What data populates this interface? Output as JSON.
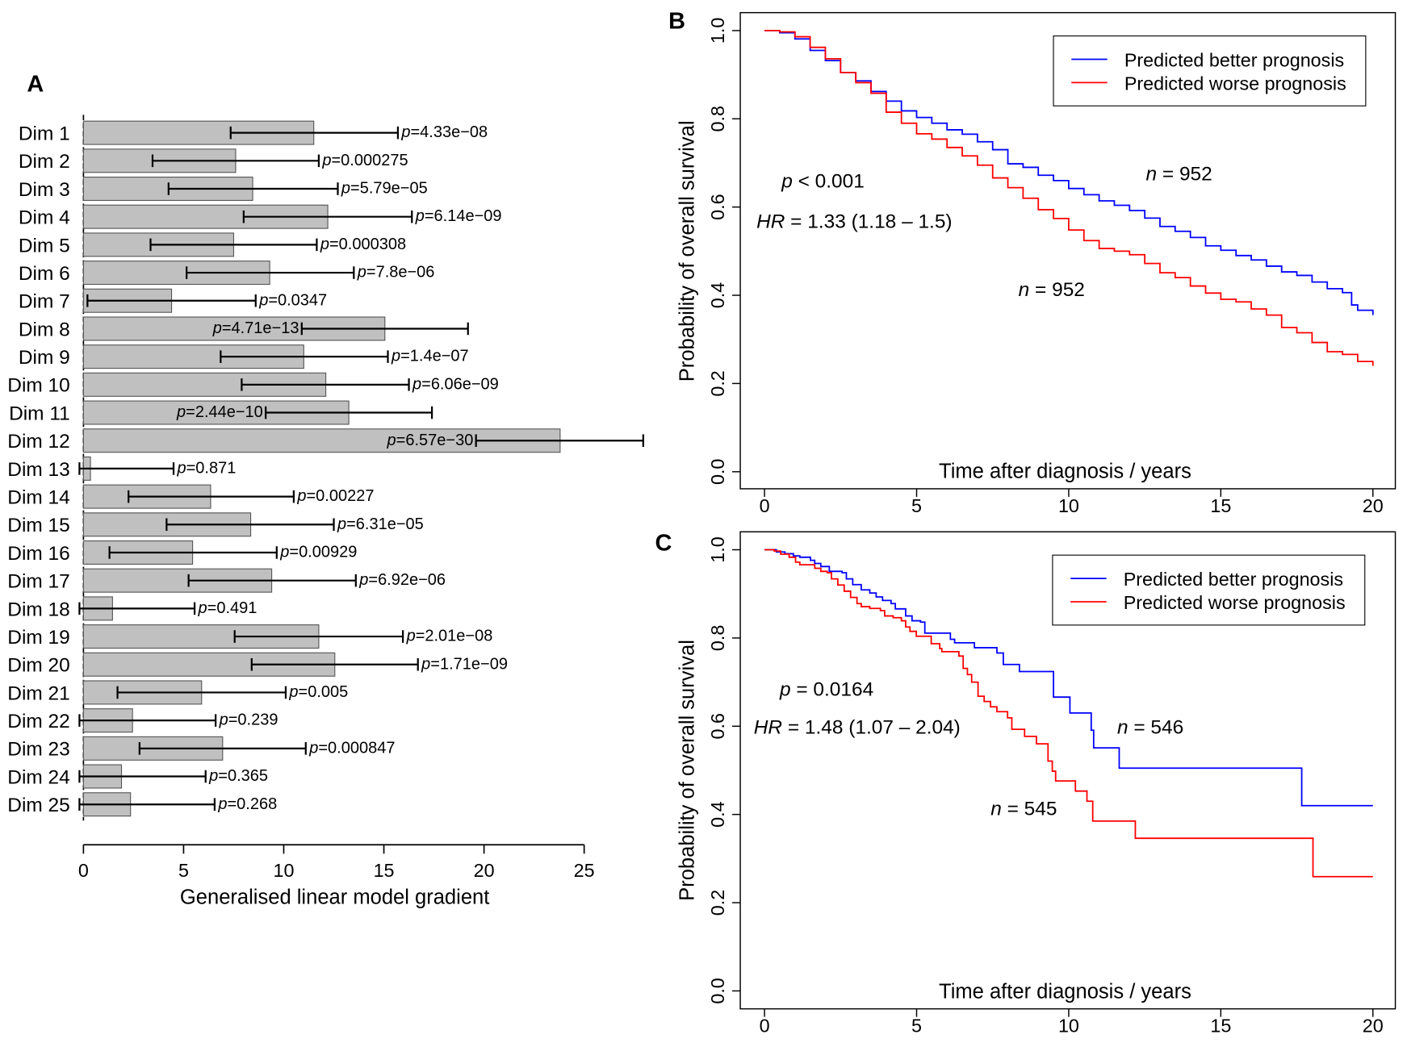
{
  "panel_letters": {
    "a": "A",
    "b": "B",
    "c": "C"
  },
  "chart_data": [
    {
      "type": "bar",
      "orientation": "horizontal",
      "panel": "A",
      "xlabel": "Generalised linear model gradient",
      "xlim": [
        0,
        25
      ],
      "xticks": [
        "0",
        "5",
        "10",
        "15",
        "20",
        "25"
      ],
      "bar_color": "#c0c0c0",
      "categories": [
        "Dim 1",
        "Dim 2",
        "Dim 3",
        "Dim 4",
        "Dim 5",
        "Dim 6",
        "Dim 7",
        "Dim 8",
        "Dim 9",
        "Dim 10",
        "Dim 11",
        "Dim 12",
        "Dim 13",
        "Dim 14",
        "Dim 15",
        "Dim 16",
        "Dim 17",
        "Dim 18",
        "Dim 19",
        "Dim 20",
        "Dim 21",
        "Dim 22",
        "Dim 23",
        "Dim 24",
        "Dim 25"
      ],
      "values": [
        11.5,
        7.6,
        8.45,
        12.2,
        7.5,
        9.3,
        4.4,
        15.05,
        11.0,
        12.1,
        13.25,
        23.8,
        0.35,
        6.35,
        8.35,
        5.45,
        9.4,
        1.45,
        11.75,
        12.55,
        5.9,
        2.45,
        6.95,
        1.9,
        2.35
      ],
      "error_low": [
        7.35,
        3.45,
        4.25,
        8.0,
        3.35,
        5.15,
        0.2,
        10.9,
        6.85,
        7.9,
        9.1,
        19.6,
        -0.2,
        2.25,
        4.15,
        1.3,
        5.25,
        -0.2,
        7.55,
        8.4,
        1.7,
        -0.2,
        2.8,
        -0.2,
        -0.2
      ],
      "error_high": [
        15.7,
        11.75,
        12.7,
        16.4,
        11.65,
        13.5,
        8.6,
        19.2,
        15.2,
        16.25,
        17.4,
        27.95,
        4.5,
        10.5,
        12.5,
        9.65,
        13.6,
        5.55,
        15.95,
        16.7,
        10.1,
        6.6,
        11.1,
        6.1,
        6.55
      ],
      "p_values": [
        "4.33e−08",
        "0.000275",
        "5.79e−05",
        "6.14e−09",
        "0.000308",
        "7.8e−06",
        "0.0347",
        "4.71e−13",
        "1.4e−07",
        "6.06e−09",
        "2.44e−10",
        "6.57e−30",
        "0.871",
        "0.00227",
        "6.31e−05",
        "0.00929",
        "6.92e−06",
        "0.491",
        "2.01e−08",
        "1.71e−09",
        "0.005",
        "0.239",
        "0.000847",
        "0.365",
        "0.268"
      ],
      "p_prefix": "p",
      "p_equals": "="
    },
    {
      "type": "line",
      "style": "step",
      "panel": "B",
      "xlabel": "Time after diagnosis / years",
      "ylabel": "Probability of overall survival",
      "xlim": [
        0,
        20
      ],
      "ylim": [
        0,
        1
      ],
      "xticks": [
        "0",
        "5",
        "10",
        "15",
        "20"
      ],
      "yticks": [
        "0.0",
        "0.2",
        "0.4",
        "0.6",
        "0.8",
        "1.0"
      ],
      "legend": "top-right",
      "annotations": {
        "p": "p",
        "p_rest": " < 0.001",
        "hr": "HR",
        "hr_rest": " = 1.33 (1.18 – 1.5)",
        "n1": "n",
        "n1_rest": " = 952",
        "n2": "n",
        "n2_rest": " = 952"
      },
      "series": [
        {
          "name": "Predicted better prognosis",
          "color": "#0000ff",
          "points": [
            [
              0,
              1
            ],
            [
              0.5,
              0.995
            ],
            [
              1,
              0.981
            ],
            [
              1.5,
              0.955
            ],
            [
              2,
              0.932
            ],
            [
              2.5,
              0.905
            ],
            [
              3,
              0.886
            ],
            [
              3.5,
              0.862
            ],
            [
              4,
              0.84
            ],
            [
              4.5,
              0.818
            ],
            [
              5,
              0.803
            ],
            [
              5.5,
              0.79
            ],
            [
              6,
              0.775
            ],
            [
              6.5,
              0.765
            ],
            [
              7,
              0.748
            ],
            [
              7.5,
              0.73
            ],
            [
              8,
              0.698
            ],
            [
              8.5,
              0.69
            ],
            [
              9,
              0.672
            ],
            [
              9.5,
              0.66
            ],
            [
              10,
              0.642
            ],
            [
              10.5,
              0.628
            ],
            [
              11,
              0.614
            ],
            [
              11.5,
              0.604
            ],
            [
              12,
              0.592
            ],
            [
              12.5,
              0.575
            ],
            [
              13,
              0.556
            ],
            [
              13.5,
              0.545
            ],
            [
              14,
              0.531
            ],
            [
              14.5,
              0.512
            ],
            [
              15,
              0.502
            ],
            [
              15.5,
              0.49
            ],
            [
              16,
              0.48
            ],
            [
              16.5,
              0.466
            ],
            [
              17,
              0.453
            ],
            [
              17.5,
              0.445
            ],
            [
              18,
              0.43
            ],
            [
              18.5,
              0.415
            ],
            [
              19,
              0.406
            ],
            [
              19.3,
              0.378
            ],
            [
              19.5,
              0.366
            ],
            [
              20,
              0.355
            ]
          ]
        },
        {
          "name": "Predicted worse prognosis",
          "color": "#ff0000",
          "points": [
            [
              0,
              1
            ],
            [
              0.5,
              0.997
            ],
            [
              1,
              0.986
            ],
            [
              1.5,
              0.962
            ],
            [
              2,
              0.936
            ],
            [
              2.5,
              0.905
            ],
            [
              3,
              0.882
            ],
            [
              3.5,
              0.858
            ],
            [
              4,
              0.815
            ],
            [
              4.5,
              0.79
            ],
            [
              5,
              0.766
            ],
            [
              5.5,
              0.754
            ],
            [
              6,
              0.735
            ],
            [
              6.5,
              0.716
            ],
            [
              7,
              0.695
            ],
            [
              7.5,
              0.666
            ],
            [
              8,
              0.644
            ],
            [
              8.5,
              0.62
            ],
            [
              9,
              0.594
            ],
            [
              9.5,
              0.574
            ],
            [
              10,
              0.548
            ],
            [
              10.5,
              0.524
            ],
            [
              11,
              0.506
            ],
            [
              11.5,
              0.5
            ],
            [
              12,
              0.492
            ],
            [
              12.5,
              0.472
            ],
            [
              13,
              0.451
            ],
            [
              13.5,
              0.44
            ],
            [
              14,
              0.421
            ],
            [
              14.5,
              0.405
            ],
            [
              15,
              0.391
            ],
            [
              15.5,
              0.385
            ],
            [
              16,
              0.369
            ],
            [
              16.5,
              0.355
            ],
            [
              17,
              0.327
            ],
            [
              17.5,
              0.315
            ],
            [
              18,
              0.293
            ],
            [
              18.5,
              0.272
            ],
            [
              19,
              0.266
            ],
            [
              19.5,
              0.25
            ],
            [
              20,
              0.24
            ]
          ]
        }
      ]
    },
    {
      "type": "line",
      "style": "step",
      "panel": "C",
      "xlabel": "Time after diagnosis / years",
      "ylabel": "Probability of overall survival",
      "xlim": [
        0,
        20
      ],
      "ylim": [
        0,
        1
      ],
      "xticks": [
        "0",
        "5",
        "10",
        "15",
        "20"
      ],
      "yticks": [
        "0.0",
        "0.2",
        "0.4",
        "0.6",
        "0.8",
        "1.0"
      ],
      "legend": "top-right",
      "annotations": {
        "p": "p",
        "p_rest": " = 0.0164",
        "hr": "HR",
        "hr_rest": " = 1.48 (1.07 – 2.04)",
        "n1": "n",
        "n1_rest": " = 546",
        "n2": "n",
        "n2_rest": " = 545"
      },
      "series": [
        {
          "name": "Predicted better prognosis",
          "color": "#0000ff",
          "points": [
            [
              0,
              1
            ],
            [
              0.39,
              0.995
            ],
            [
              0.67,
              0.991
            ],
            [
              0.95,
              0.986
            ],
            [
              1.16,
              0.983
            ],
            [
              1.51,
              0.976
            ],
            [
              1.65,
              0.969
            ],
            [
              1.85,
              0.962
            ],
            [
              2.13,
              0.951
            ],
            [
              2.55,
              0.948
            ],
            [
              2.69,
              0.934
            ],
            [
              2.9,
              0.921
            ],
            [
              3.18,
              0.909
            ],
            [
              3.46,
              0.902
            ],
            [
              3.67,
              0.893
            ],
            [
              3.88,
              0.885
            ],
            [
              4.16,
              0.878
            ],
            [
              4.3,
              0.866
            ],
            [
              4.64,
              0.85
            ],
            [
              4.85,
              0.839
            ],
            [
              5.13,
              0.836
            ],
            [
              5.27,
              0.811
            ],
            [
              6.11,
              0.797
            ],
            [
              6.25,
              0.789
            ],
            [
              6.9,
              0.778
            ],
            [
              7.64,
              0.766
            ],
            [
              7.85,
              0.74
            ],
            [
              8.38,
              0.724
            ],
            [
              9.5,
              0.666
            ],
            [
              10.04,
              0.63
            ],
            [
              10.74,
              0.591
            ],
            [
              10.82,
              0.551
            ],
            [
              11.66,
              0.505
            ],
            [
              17.66,
              0.42
            ],
            [
              20,
              0.42
            ]
          ]
        },
        {
          "name": "Predicted worse prognosis",
          "color": "#ff0000",
          "points": [
            [
              0,
              1
            ],
            [
              0.32,
              0.997
            ],
            [
              0.53,
              0.99
            ],
            [
              0.81,
              0.983
            ],
            [
              1.02,
              0.972
            ],
            [
              1.16,
              0.966
            ],
            [
              1.65,
              0.958
            ],
            [
              1.85,
              0.951
            ],
            [
              2.06,
              0.948
            ],
            [
              2.2,
              0.934
            ],
            [
              2.41,
              0.92
            ],
            [
              2.62,
              0.906
            ],
            [
              2.83,
              0.892
            ],
            [
              3.04,
              0.878
            ],
            [
              3.18,
              0.871
            ],
            [
              3.46,
              0.867
            ],
            [
              3.81,
              0.862
            ],
            [
              3.95,
              0.85
            ],
            [
              4.23,
              0.846
            ],
            [
              4.5,
              0.839
            ],
            [
              4.64,
              0.825
            ],
            [
              4.78,
              0.815
            ],
            [
              4.99,
              0.804
            ],
            [
              5.48,
              0.787
            ],
            [
              5.76,
              0.776
            ],
            [
              5.83,
              0.769
            ],
            [
              6.39,
              0.759
            ],
            [
              6.53,
              0.731
            ],
            [
              6.67,
              0.717
            ],
            [
              6.81,
              0.7
            ],
            [
              7.02,
              0.668
            ],
            [
              7.22,
              0.656
            ],
            [
              7.43,
              0.644
            ],
            [
              7.64,
              0.633
            ],
            [
              7.99,
              0.619
            ],
            [
              8.13,
              0.593
            ],
            [
              8.55,
              0.577
            ],
            [
              8.94,
              0.56
            ],
            [
              9.32,
              0.521
            ],
            [
              9.46,
              0.498
            ],
            [
              9.57,
              0.476
            ],
            [
              10.22,
              0.453
            ],
            [
              10.6,
              0.43
            ],
            [
              10.79,
              0.385
            ],
            [
              12.19,
              0.346
            ],
            [
              18.03,
              0.259
            ],
            [
              20,
              0.259
            ]
          ]
        }
      ]
    }
  ]
}
